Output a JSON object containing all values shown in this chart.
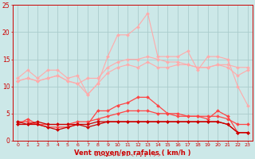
{
  "x": [
    0,
    1,
    2,
    3,
    4,
    5,
    6,
    7,
    8,
    9,
    10,
    11,
    12,
    13,
    14,
    15,
    16,
    17,
    18,
    19,
    20,
    21,
    22,
    23
  ],
  "line_light1": [
    11.5,
    13.0,
    11.5,
    13.0,
    13.0,
    11.5,
    12.0,
    8.5,
    10.5,
    15.5,
    19.5,
    19.5,
    21.0,
    23.5,
    15.5,
    15.5,
    15.5,
    16.5,
    13.0,
    15.5,
    15.5,
    15.0,
    10.0,
    6.5
  ],
  "line_light2": [
    11.0,
    11.5,
    11.0,
    11.5,
    12.0,
    11.0,
    10.5,
    11.5,
    11.5,
    13.5,
    14.5,
    15.0,
    15.0,
    15.5,
    15.0,
    14.5,
    14.5,
    14.0,
    13.5,
    13.5,
    14.0,
    14.0,
    13.5,
    13.5
  ],
  "line_light3": [
    11.0,
    11.5,
    11.0,
    11.5,
    12.0,
    11.0,
    10.5,
    8.5,
    10.5,
    12.5,
    13.5,
    14.0,
    13.5,
    14.5,
    13.5,
    13.5,
    14.0,
    14.0,
    13.5,
    13.5,
    14.0,
    13.5,
    12.0,
    13.0
  ],
  "line_med1": [
    3.0,
    4.0,
    3.0,
    2.5,
    2.5,
    2.5,
    3.0,
    3.0,
    5.5,
    5.5,
    6.5,
    7.0,
    8.0,
    8.0,
    6.5,
    5.0,
    4.5,
    4.5,
    4.5,
    4.0,
    5.5,
    4.5,
    1.5,
    1.5
  ],
  "line_med2": [
    3.5,
    3.5,
    3.0,
    3.0,
    3.0,
    3.0,
    3.5,
    3.5,
    4.0,
    4.5,
    5.0,
    5.5,
    5.5,
    5.5,
    5.0,
    5.0,
    5.0,
    4.5,
    4.5,
    4.5,
    4.5,
    4.0,
    3.0,
    3.0
  ],
  "line_dark1": [
    3.0,
    3.0,
    3.0,
    2.5,
    2.0,
    2.5,
    3.0,
    2.5,
    3.0,
    3.5,
    3.5,
    3.5,
    3.5,
    3.5,
    3.5,
    3.5,
    3.5,
    3.5,
    3.5,
    3.5,
    3.5,
    3.0,
    1.5,
    1.5
  ],
  "line_dark2": [
    3.5,
    3.0,
    3.5,
    3.0,
    3.0,
    3.0,
    3.0,
    3.0,
    3.5,
    3.5,
    3.5,
    3.5,
    3.5,
    3.5,
    3.5,
    3.5,
    3.5,
    3.5,
    3.5,
    3.5,
    3.5,
    3.0,
    1.5,
    1.5
  ],
  "bg_color": "#cce8e8",
  "grid_color": "#aacccc",
  "color_light": "#ffaaaa",
  "color_med": "#ff4444",
  "color_dark": "#cc0000",
  "xlabel": "Vent moyen/en rafales ( km/h )",
  "ylim": [
    0,
    25
  ],
  "xlim": [
    -0.5,
    23.5
  ],
  "yticks": [
    0,
    5,
    10,
    15,
    20,
    25
  ],
  "xticks": [
    0,
    1,
    2,
    3,
    4,
    5,
    6,
    7,
    8,
    9,
    10,
    11,
    12,
    13,
    14,
    15,
    16,
    17,
    18,
    19,
    20,
    21,
    22,
    23
  ]
}
